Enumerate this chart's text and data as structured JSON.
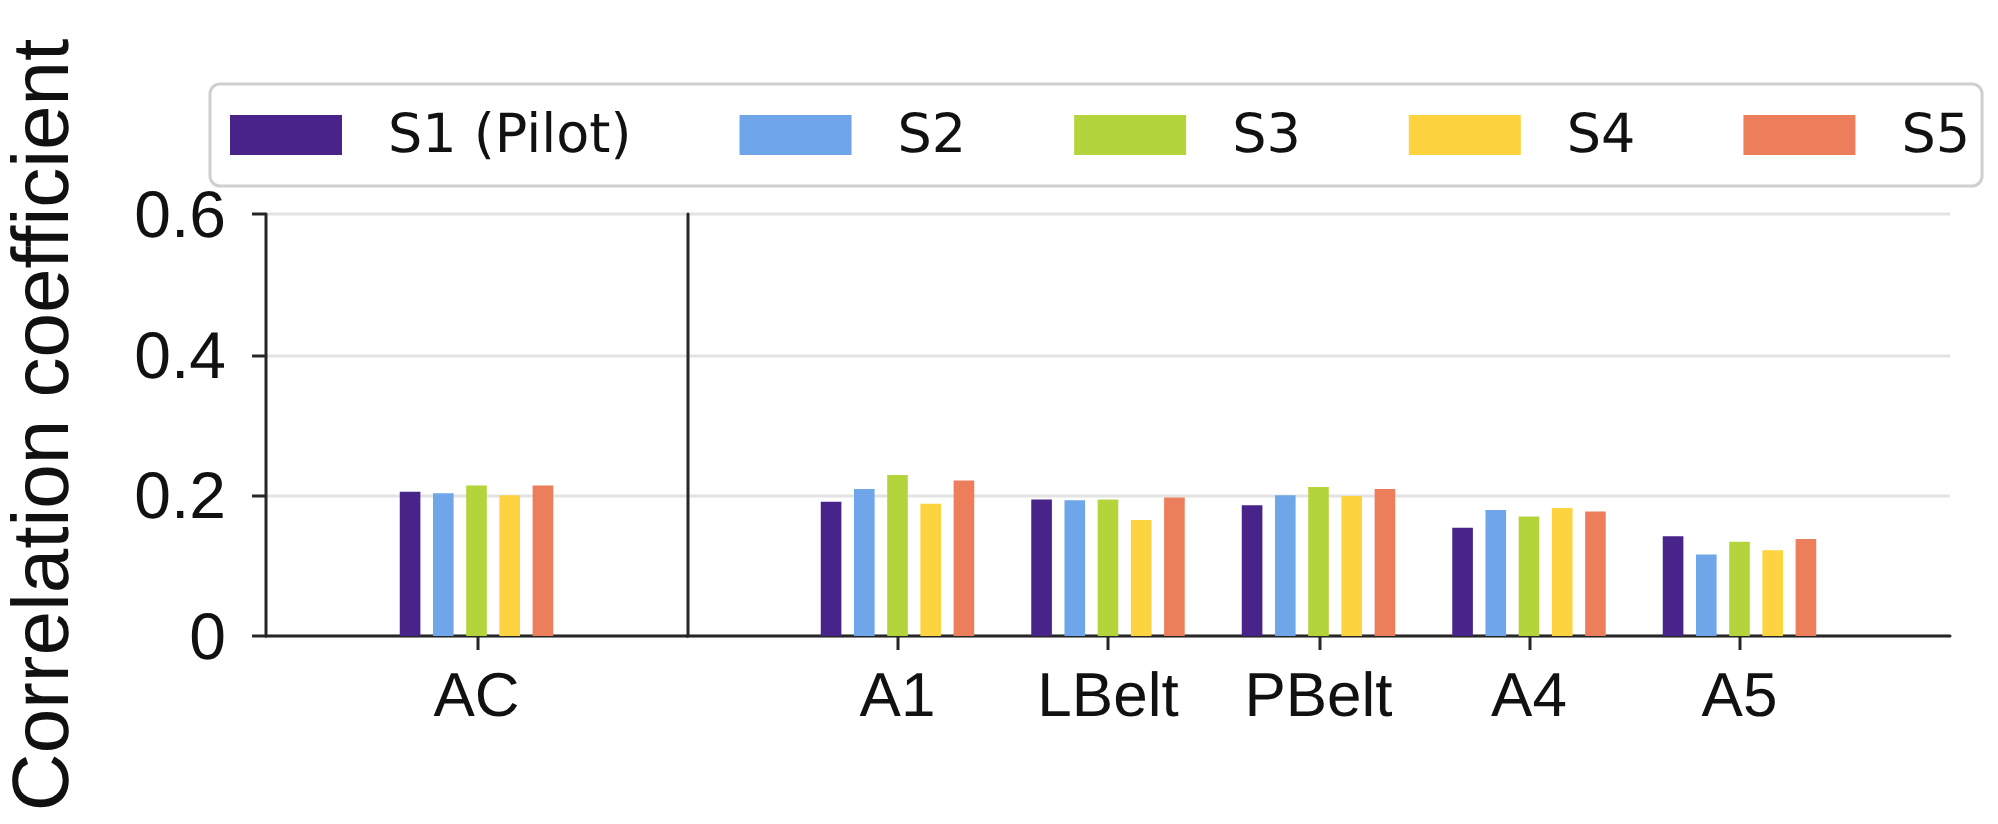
{
  "chart_data": [
    {
      "type": "bar",
      "ylabel": "Correlation coefficient",
      "categories": [
        "AC"
      ],
      "series": [
        {
          "color": "#48238a",
          "values": [
            0.205
          ]
        },
        {
          "color": "#6fa6e9",
          "values": [
            0.203
          ]
        },
        {
          "color": "#b4d43c",
          "values": [
            0.214
          ]
        },
        {
          "color": "#fdd33f",
          "values": [
            0.2
          ]
        },
        {
          "color": "#ed7e5c",
          "values": [
            0.214
          ]
        }
      ],
      "ylim": [
        0,
        0.6
      ],
      "yticks": [
        0,
        0.2,
        0.4,
        0.6
      ],
      "grid": "y"
    },
    {
      "type": "bar",
      "categories": [
        "A1",
        "LBelt",
        "PBelt",
        "A4",
        "A5"
      ],
      "series": [
        {
          "name": "S1 (Pilot)",
          "color": "#48238a",
          "values": [
            0.191,
            0.194,
            0.186,
            0.154,
            0.142
          ]
        },
        {
          "name": "S2",
          "color": "#6fa6e9",
          "values": [
            0.209,
            0.193,
            0.2,
            0.179,
            0.116
          ]
        },
        {
          "name": "S3",
          "color": "#b4d43c",
          "values": [
            0.229,
            0.194,
            0.212,
            0.17,
            0.134
          ]
        },
        {
          "name": "S4",
          "color": "#fdd33f",
          "values": [
            0.188,
            0.165,
            0.199,
            0.182,
            0.122
          ]
        },
        {
          "name": "S5",
          "color": "#ed7e5c",
          "values": [
            0.221,
            0.197,
            0.209,
            0.177,
            0.138
          ]
        }
      ],
      "ylim": [
        0,
        0.6
      ],
      "yticks": [
        0,
        0.2,
        0.4,
        0.6
      ],
      "grid": "y",
      "legend": "top",
      "tick_labels": "x"
    }
  ]
}
